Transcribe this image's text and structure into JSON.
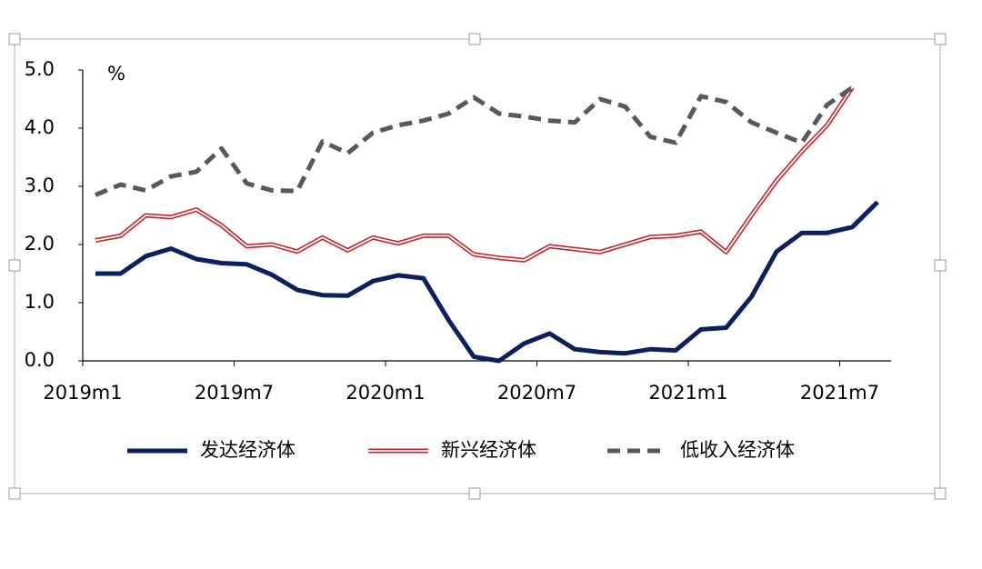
{
  "chart_data": {
    "type": "line",
    "y_unit": "%",
    "categories": [
      "2019m1",
      null,
      null,
      null,
      null,
      null,
      "2019m7",
      null,
      null,
      null,
      null,
      null,
      "2020m1",
      null,
      null,
      null,
      null,
      null,
      "2020m7",
      null,
      null,
      null,
      null,
      null,
      "2021m1",
      null,
      null,
      null,
      null,
      null,
      "2021m7",
      null
    ],
    "series": [
      {
        "name": "发达经济体",
        "color": "#0d1f5c",
        "style": "solid",
        "values": [
          1.5,
          1.5,
          1.8,
          1.93,
          1.75,
          1.68,
          1.66,
          1.48,
          1.22,
          1.13,
          1.12,
          1.37,
          1.47,
          1.42,
          0.7,
          0.07,
          0.0,
          0.3,
          0.47,
          0.2,
          0.15,
          0.13,
          0.2,
          0.18,
          0.54,
          0.57,
          1.1,
          1.88,
          2.2,
          2.2,
          2.3,
          2.73
        ]
      },
      {
        "name": "新兴经济体",
        "color": "#c0282d",
        "style": "double",
        "values": [
          2.07,
          2.15,
          2.5,
          2.47,
          2.6,
          2.33,
          1.97,
          2.0,
          1.88,
          2.12,
          1.9,
          2.12,
          2.02,
          2.15,
          2.15,
          1.83,
          1.77,
          1.73,
          1.97,
          1.92,
          1.87,
          2.0,
          2.13,
          2.15,
          2.22,
          1.87,
          2.5,
          3.1,
          3.6,
          4.05,
          4.7,
          null
        ]
      },
      {
        "name": "低收入经济体",
        "color": "#595959",
        "style": "dashed",
        "values": [
          2.85,
          3.03,
          2.93,
          3.17,
          3.25,
          3.65,
          3.05,
          2.93,
          2.92,
          3.77,
          3.57,
          3.92,
          4.05,
          4.13,
          4.25,
          4.53,
          4.25,
          4.2,
          4.13,
          4.1,
          4.5,
          4.37,
          3.85,
          3.75,
          4.55,
          4.45,
          4.1,
          3.92,
          3.75,
          4.4,
          4.7,
          null
        ]
      }
    ],
    "ylim": [
      0,
      5
    ],
    "yticks": [
      {
        "value": 0,
        "label": "0.0"
      },
      {
        "value": 1,
        "label": "1.0"
      },
      {
        "value": 2,
        "label": "2.0"
      },
      {
        "value": 3,
        "label": "3.0"
      },
      {
        "value": 4,
        "label": "4.0"
      },
      {
        "value": 5,
        "label": "5.0"
      }
    ],
    "grid": false,
    "legend": "bottom"
  }
}
